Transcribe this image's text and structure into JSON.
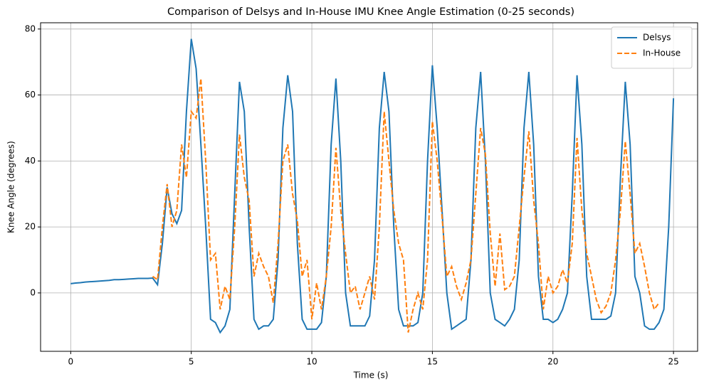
{
  "chart_data": {
    "type": "line",
    "title": "Comparison of Delsys and In-House IMU Knee Angle Estimation (0-25 seconds)",
    "x_label": "Time (s)",
    "y_label": "Knee Angle (degrees)",
    "x": [
      0,
      0.2,
      0.4,
      0.6,
      0.8,
      1,
      1.2,
      1.4,
      1.6,
      1.8,
      2,
      2.2,
      2.4,
      2.6,
      2.8,
      3,
      3.2,
      3.4,
      3.6,
      3.8,
      4,
      4.2,
      4.4,
      4.6,
      4.8,
      5,
      5.2,
      5.4,
      5.6,
      5.8,
      6,
      6.2,
      6.4,
      6.6,
      6.8,
      7,
      7.2,
      7.4,
      7.6,
      7.8,
      8,
      8.2,
      8.4,
      8.6,
      8.8,
      9,
      9.2,
      9.4,
      9.6,
      9.8,
      10,
      10.2,
      10.4,
      10.6,
      10.8,
      11,
      11.2,
      11.4,
      11.6,
      11.8,
      12,
      12.2,
      12.4,
      12.6,
      12.8,
      13,
      13.2,
      13.4,
      13.6,
      13.8,
      14,
      14.2,
      14.4,
      14.6,
      14.8,
      15,
      15.2,
      15.4,
      15.6,
      15.8,
      16,
      16.2,
      16.4,
      16.6,
      16.8,
      17,
      17.2,
      17.4,
      17.6,
      17.8,
      18,
      18.2,
      18.4,
      18.6,
      18.8,
      19,
      19.2,
      19.4,
      19.6,
      19.8,
      20,
      20.2,
      20.4,
      20.6,
      20.8,
      21,
      21.2,
      21.4,
      21.6,
      21.8,
      22,
      22.2,
      22.4,
      22.6,
      22.8,
      23,
      23.2,
      23.4,
      23.6,
      23.8,
      24,
      24.2,
      24.4,
      24.6,
      24.8,
      25
    ],
    "series": [
      {
        "name": "Delsys",
        "color": "#1f77b4",
        "linestyle": "solid",
        "values": [
          2.8,
          3.0,
          3.1,
          3.3,
          3.4,
          3.5,
          3.6,
          3.7,
          3.8,
          4.0,
          4.0,
          4.1,
          4.2,
          4.3,
          4.4,
          4.4,
          4.4,
          4.5,
          2.5,
          15,
          32,
          24,
          21,
          25,
          55,
          77,
          68,
          45,
          20,
          -8,
          -9,
          -12,
          -10,
          -5,
          30,
          64,
          55,
          20,
          -8,
          -11,
          -10,
          -10,
          -8,
          10,
          50,
          66,
          55,
          15,
          -8,
          -11,
          -11,
          -11,
          -9,
          5,
          45,
          65,
          40,
          0,
          -10,
          -10,
          -10,
          -10,
          -7,
          10,
          50,
          67,
          55,
          20,
          -5,
          -10,
          -10,
          -10,
          -9,
          0,
          40,
          69,
          50,
          25,
          0,
          -11,
          -10,
          -9,
          -8,
          10,
          50,
          67,
          40,
          0,
          -8,
          -9,
          -10,
          -8,
          -5,
          10,
          50,
          67,
          45,
          5,
          -8,
          -8,
          -9,
          -8,
          -5,
          0,
          30,
          66,
          45,
          5,
          -8,
          -8,
          -8,
          -8,
          -7,
          0,
          35,
          64,
          45,
          5,
          0,
          -10,
          -11,
          -11,
          -9,
          -5,
          20,
          59
        ]
      },
      {
        "name": "In-House",
        "color": "#ff7f0e",
        "linestyle": "dashed",
        "values": [
          null,
          null,
          null,
          null,
          null,
          null,
          null,
          null,
          null,
          null,
          null,
          null,
          null,
          null,
          null,
          null,
          null,
          5,
          4,
          20,
          33,
          20,
          25,
          45,
          35,
          55,
          53,
          65,
          40,
          10,
          12,
          -5,
          2,
          -2,
          20,
          48,
          35,
          28,
          5,
          12,
          8,
          5,
          -3,
          15,
          40,
          45,
          30,
          22,
          5,
          10,
          -8,
          3,
          -5,
          5,
          20,
          44,
          25,
          12,
          0,
          2,
          -5,
          0,
          5,
          -2,
          20,
          55,
          40,
          25,
          15,
          10,
          -12,
          -5,
          0,
          -5,
          10,
          52,
          40,
          23,
          5,
          8,
          2,
          -2,
          3,
          10,
          30,
          50,
          42,
          18,
          2,
          18,
          1,
          2,
          5,
          20,
          35,
          49,
          28,
          15,
          -5,
          5,
          0,
          2,
          7,
          3,
          15,
          47,
          25,
          12,
          5,
          -2,
          -6,
          -4,
          0,
          10,
          25,
          46,
          30,
          12,
          15,
          8,
          0,
          -5,
          -3,
          null,
          null,
          null
        ]
      }
    ],
    "xlim": [
      -1.25,
      26.0
    ],
    "ylim": [
      -17.7,
      81.9
    ],
    "xticks": [
      0,
      5,
      10,
      15,
      20,
      25
    ],
    "yticks": [
      0,
      20,
      40,
      60,
      80
    ],
    "grid": true,
    "legend": "upper right"
  }
}
